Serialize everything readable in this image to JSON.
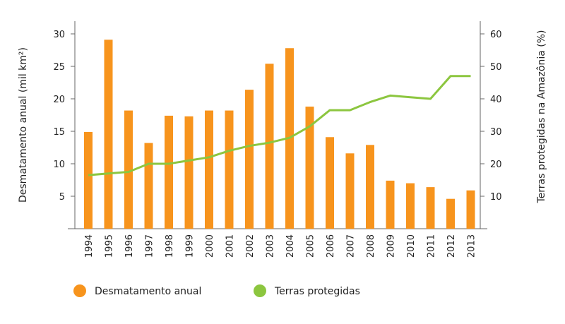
{
  "chart_data": {
    "type": "bar",
    "categories": [
      "1994",
      "1995",
      "1996",
      "1997",
      "1998",
      "1999",
      "2000",
      "2001",
      "2002",
      "2003",
      "2004",
      "2005",
      "2006",
      "2007",
      "2008",
      "2009",
      "2010",
      "2011",
      "2012",
      "2013"
    ],
    "series": [
      {
        "name": "Desmatamento anual",
        "type": "bar",
        "axis": "left",
        "color": "#f7941d",
        "values": [
          14.9,
          29.1,
          18.2,
          13.2,
          17.4,
          17.3,
          18.2,
          18.2,
          21.4,
          25.4,
          27.8,
          18.8,
          14.1,
          11.6,
          12.9,
          7.4,
          7.0,
          6.4,
          4.6,
          5.9
        ]
      },
      {
        "name": "Terras protegidas",
        "type": "line",
        "axis": "right",
        "color": "#8cc63f",
        "values": [
          16.5,
          17.0,
          17.5,
          20.0,
          20.0,
          21.0,
          22.0,
          24.0,
          25.5,
          26.5,
          28.0,
          31.5,
          36.5,
          36.5,
          39.0,
          41.0,
          40.5,
          40.0,
          47.0,
          47.0
        ]
      }
    ],
    "ylabel": "Desmatamento anual (mil km²)",
    "y2label": "Terras protegidas na Amazônia (%)",
    "ylim": [
      0,
      33
    ],
    "y2lim": [
      0,
      66
    ],
    "yticks": [
      "5",
      "10",
      "15",
      "20",
      "25",
      "30"
    ],
    "y2ticks": [
      "10",
      "20",
      "30",
      "40",
      "50",
      "60"
    ],
    "legend": [
      {
        "label": "Desmatamento anual",
        "color": "#f7941d"
      },
      {
        "label": "Terras protegidas",
        "color": "#8cc63f"
      }
    ],
    "legend_position": "bottom",
    "grid": false
  }
}
